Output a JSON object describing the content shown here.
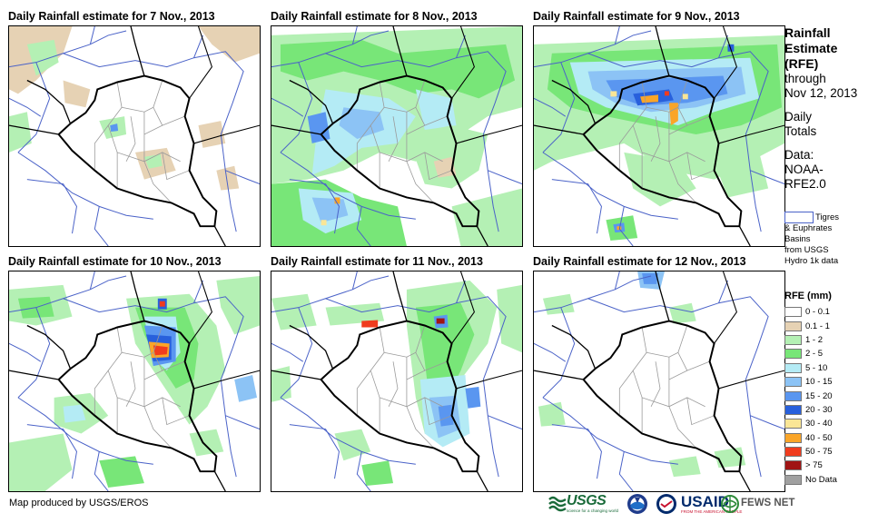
{
  "panels": [
    {
      "title": "Daily Rainfall estimate for 7 Nov., 2013"
    },
    {
      "title": "Daily Rainfall estimate for 8 Nov., 2013"
    },
    {
      "title": "Daily Rainfall estimate for 9 Nov., 2013"
    },
    {
      "title": "Daily Rainfall estimate for 10 Nov., 2013"
    },
    {
      "title": "Daily Rainfall estimate for 11 Nov., 2013"
    },
    {
      "title": "Daily Rainfall estimate for 12 Nov., 2013"
    }
  ],
  "side": {
    "title_lines": [
      "Rainfall",
      "Estimate",
      "(RFE)"
    ],
    "through": "through",
    "date": "Nov 12, 2013",
    "daily": "Daily",
    "totals": "Totals",
    "data_label": "Data:",
    "data_source_1": "NOAA-",
    "data_source_2": "RFE2.0"
  },
  "basin_legend": {
    "line1": "Tigres",
    "line2": "& Euphrates",
    "line3": "Basins",
    "line4": "from USGS",
    "line5": "Hydro 1k data",
    "color": "#4a62c8"
  },
  "rfe_legend": {
    "title": "RFE (mm)",
    "classes": [
      {
        "label": "0 - 0.1",
        "color": "#ffffff"
      },
      {
        "label": "0.1 - 1",
        "color": "#e6d2b4"
      },
      {
        "label": "1 - 2",
        "color": "#b4f0b4"
      },
      {
        "label": "2 - 5",
        "color": "#78e678"
      },
      {
        "label": "5 - 10",
        "color": "#b4ebf5"
      },
      {
        "label": "10 - 15",
        "color": "#8cc3f5"
      },
      {
        "label": "15 - 20",
        "color": "#5a96f0"
      },
      {
        "label": "20 - 30",
        "color": "#2860dc"
      },
      {
        "label": "30 - 40",
        "color": "#fae696"
      },
      {
        "label": "40 - 50",
        "color": "#faa528"
      },
      {
        "label": "50 - 75",
        "color": "#f03c1e"
      },
      {
        "label": "> 75",
        "color": "#a01414"
      },
      {
        "label": "No Data",
        "color": "#a0a0a0"
      }
    ]
  },
  "credit": "Map produced by USGS/EROS",
  "logos": {
    "usgs": "USGS",
    "usgs_tagline": "science for a changing world",
    "usaid": "USAID",
    "usaid_tagline": "FROM THE AMERICAN PEOPLE",
    "fews": "FEWS NET"
  }
}
